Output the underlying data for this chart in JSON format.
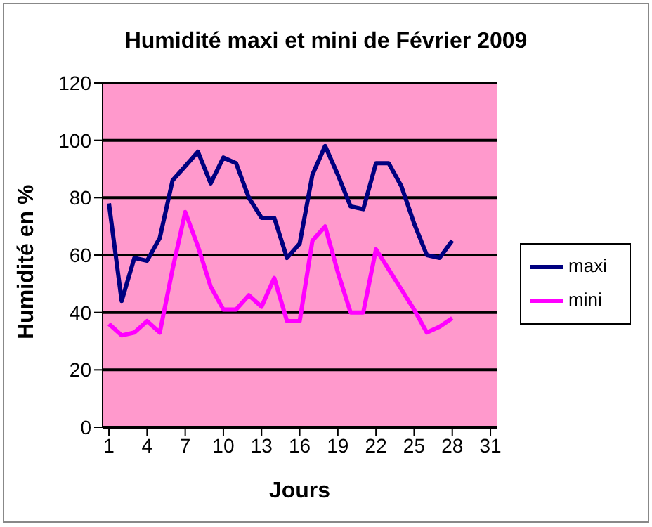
{
  "chart_data": {
    "type": "line",
    "title": "Humidité maxi et mini de Février 2009",
    "xlabel": "Jours",
    "ylabel": "Humidité en %",
    "x": [
      1,
      2,
      3,
      4,
      5,
      6,
      7,
      8,
      9,
      10,
      11,
      12,
      13,
      14,
      15,
      16,
      17,
      18,
      19,
      20,
      21,
      22,
      23,
      24,
      25,
      26,
      27,
      28
    ],
    "series": [
      {
        "name": "maxi",
        "color": "#000080",
        "values": [
          78,
          44,
          59,
          58,
          66,
          86,
          91,
          96,
          85,
          94,
          92,
          80,
          73,
          73,
          59,
          64,
          88,
          98,
          88,
          77,
          76,
          92,
          92,
          84,
          71,
          60,
          59,
          65
        ]
      },
      {
        "name": "mini",
        "color": "#ff00ff",
        "values": [
          36,
          32,
          33,
          37,
          33,
          55,
          75,
          63,
          49,
          41,
          41,
          46,
          42,
          52,
          37,
          37,
          65,
          70,
          54,
          40,
          40,
          62,
          55,
          48,
          41,
          33,
          35,
          38
        ]
      }
    ],
    "xlim": [
      0.5,
      31.5
    ],
    "xticks": [
      1,
      4,
      7,
      10,
      13,
      16,
      19,
      22,
      25,
      28,
      31
    ],
    "ylim": [
      0,
      120
    ],
    "yticks": [
      0,
      20,
      40,
      60,
      80,
      100,
      120
    ],
    "grid": "y",
    "legend": "right",
    "marker": "none",
    "line_style": "solid"
  }
}
